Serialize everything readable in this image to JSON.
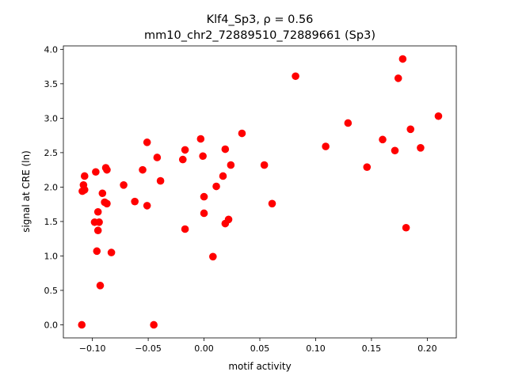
{
  "chart_data": {
    "type": "scatter",
    "title_line1": "Klf4_Sp3, ρ = 0.56",
    "title_line2": "mm10_chr2_72889510_72889661 (Sp3)",
    "xlabel": "motif activity",
    "ylabel": "signal at CRE (ln)",
    "xlim": [
      -0.126,
      0.226
    ],
    "ylim": [
      -0.19,
      4.05
    ],
    "xticks": [
      -0.1,
      -0.05,
      0.0,
      0.05,
      0.1,
      0.15,
      0.2
    ],
    "xtick_labels": [
      "−0.10",
      "−0.05",
      "0.00",
      "0.05",
      "0.10",
      "0.15",
      "0.20"
    ],
    "yticks": [
      0.0,
      0.5,
      1.0,
      1.5,
      2.0,
      2.5,
      3.0,
      3.5,
      4.0
    ],
    "ytick_labels": [
      "0.0",
      "0.5",
      "1.0",
      "1.5",
      "2.0",
      "2.5",
      "3.0",
      "3.5",
      "4.0"
    ],
    "color": "#ff0000",
    "grid": false,
    "points": [
      [
        -0.1095,
        0.0
      ],
      [
        -0.108,
        2.03
      ],
      [
        -0.107,
        2.16
      ],
      [
        -0.109,
        1.94
      ],
      [
        -0.107,
        1.96
      ],
      [
        -0.097,
        2.22
      ],
      [
        -0.098,
        1.49
      ],
      [
        -0.094,
        1.49
      ],
      [
        -0.095,
        1.64
      ],
      [
        -0.095,
        1.37
      ],
      [
        -0.096,
        1.07
      ],
      [
        -0.093,
        0.57
      ],
      [
        -0.091,
        1.91
      ],
      [
        -0.089,
        1.78
      ],
      [
        -0.087,
        1.76
      ],
      [
        -0.088,
        2.28
      ],
      [
        -0.087,
        2.25
      ],
      [
        -0.083,
        1.05
      ],
      [
        -0.072,
        2.03
      ],
      [
        -0.062,
        1.79
      ],
      [
        -0.055,
        2.25
      ],
      [
        -0.051,
        1.73
      ],
      [
        -0.051,
        2.65
      ],
      [
        -0.045,
        0.0
      ],
      [
        -0.042,
        2.43
      ],
      [
        -0.039,
        2.09
      ],
      [
        -0.019,
        2.4
      ],
      [
        -0.017,
        1.39
      ],
      [
        -0.017,
        2.54
      ],
      [
        -0.003,
        2.7
      ],
      [
        -0.001,
        2.45
      ],
      [
        0.0,
        1.86
      ],
      [
        0.0,
        1.62
      ],
      [
        0.008,
        0.99
      ],
      [
        0.011,
        2.01
      ],
      [
        0.017,
        2.16
      ],
      [
        0.019,
        2.55
      ],
      [
        0.019,
        1.47
      ],
      [
        0.022,
        1.53
      ],
      [
        0.024,
        2.32
      ],
      [
        0.034,
        2.78
      ],
      [
        0.054,
        2.32
      ],
      [
        0.061,
        1.76
      ],
      [
        0.082,
        3.61
      ],
      [
        0.109,
        2.59
      ],
      [
        0.129,
        2.93
      ],
      [
        0.146,
        2.29
      ],
      [
        0.16,
        2.69
      ],
      [
        0.171,
        2.53
      ],
      [
        0.174,
        3.58
      ],
      [
        0.178,
        3.86
      ],
      [
        0.181,
        1.41
      ],
      [
        0.185,
        2.84
      ],
      [
        0.194,
        2.57
      ],
      [
        0.21,
        3.03
      ]
    ]
  }
}
